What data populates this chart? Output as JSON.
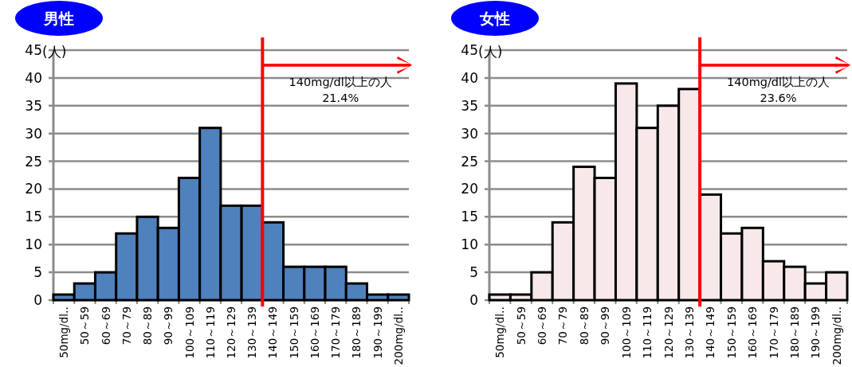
{
  "chart_data": [
    {
      "type": "bar",
      "title": "男性",
      "ylabel": "(人)",
      "categories": [
        "50mg/dl‥",
        "50～59",
        "60～69",
        "70～79",
        "80～89",
        "90～99",
        "100～109",
        "110～119",
        "120～129",
        "130～139",
        "140～149",
        "150～159",
        "160～169",
        "170～179",
        "180～189",
        "190～199",
        "200mg/dl‥"
      ],
      "values": [
        1,
        3,
        5,
        12,
        15,
        13,
        22,
        31,
        17,
        17,
        14,
        6,
        6,
        6,
        3,
        1,
        1
      ],
      "color": "#4f81bd",
      "ylim": [
        0,
        45
      ],
      "yticks": [
        0,
        5,
        10,
        15,
        20,
        25,
        30,
        35,
        40,
        45
      ],
      "grid": "y",
      "ref_lines": [
        {
          "axis": "x",
          "value": "140～149",
          "label": "140mg/dl以上の人\n21.4%",
          "color": "#ff0000"
        }
      ]
    },
    {
      "type": "bar",
      "title": "女性",
      "ylabel": "(人)",
      "categories": [
        "50mg/dl‥",
        "50～59",
        "60～69",
        "70～79",
        "80～89",
        "90～99",
        "100～109",
        "110～119",
        "120～129",
        "130～139",
        "140～149",
        "150～159",
        "160～169",
        "170～179",
        "180～189",
        "190～199",
        "200mg/dl‥"
      ],
      "values": [
        1,
        1,
        5,
        14,
        24,
        22,
        39,
        31,
        35,
        38,
        19,
        12,
        13,
        7,
        6,
        3,
        5
      ],
      "color": "#f7e9e9",
      "ylim": [
        0,
        45
      ],
      "yticks": [
        0,
        5,
        10,
        15,
        20,
        25,
        30,
        35,
        40,
        45
      ],
      "grid": "y",
      "ref_lines": [
        {
          "axis": "x",
          "value": "140～149",
          "label": "140mg/dl以上の人\n23.6%",
          "color": "#ff0000"
        }
      ]
    }
  ]
}
